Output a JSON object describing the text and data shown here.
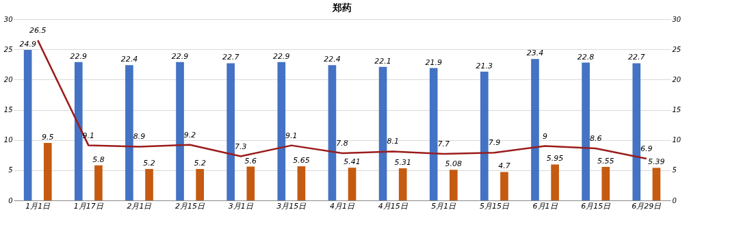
{
  "chart_data": {
    "type": "bar",
    "title": "郑药",
    "categories": [
      "1月1日",
      "1月17日",
      "2月1日",
      "2月15日",
      "3月1日",
      "3月15日",
      "4月1日",
      "4月15日",
      "5月1日",
      "5月15日",
      "6月1日",
      "6月15日",
      "6月29日"
    ],
    "series": [
      {
        "color": "#4472c4",
        "values": [
          24.9,
          22.9,
          22.4,
          22.9,
          22.7,
          22.9,
          22.4,
          22.1,
          21.9,
          21.3,
          23.4,
          22.8,
          22.7
        ]
      },
      {
        "color": "#c55a11",
        "values": [
          9.5,
          5.8,
          5.2,
          5.2,
          5.6,
          5.65,
          5.41,
          5.31,
          5.08,
          4.7,
          5.95,
          5.55,
          5.39
        ]
      },
      {
        "type": "line",
        "axis": "y2",
        "color": "#9b1c1c",
        "values": [
          26.5,
          9.1,
          8.9,
          9.2,
          7.3,
          9.1,
          7.8,
          8.1,
          7.7,
          7.9,
          9,
          8.6,
          6.9
        ]
      }
    ],
    "ylim": [
      0,
      30
    ],
    "yticks": [
      0,
      5,
      10,
      15,
      20,
      25,
      30
    ],
    "y2lim": [
      0,
      30
    ],
    "y2ticks": [
      0,
      5,
      10,
      15,
      20,
      25,
      30
    ],
    "grid": "y",
    "data_labels": true,
    "marker": "none"
  }
}
